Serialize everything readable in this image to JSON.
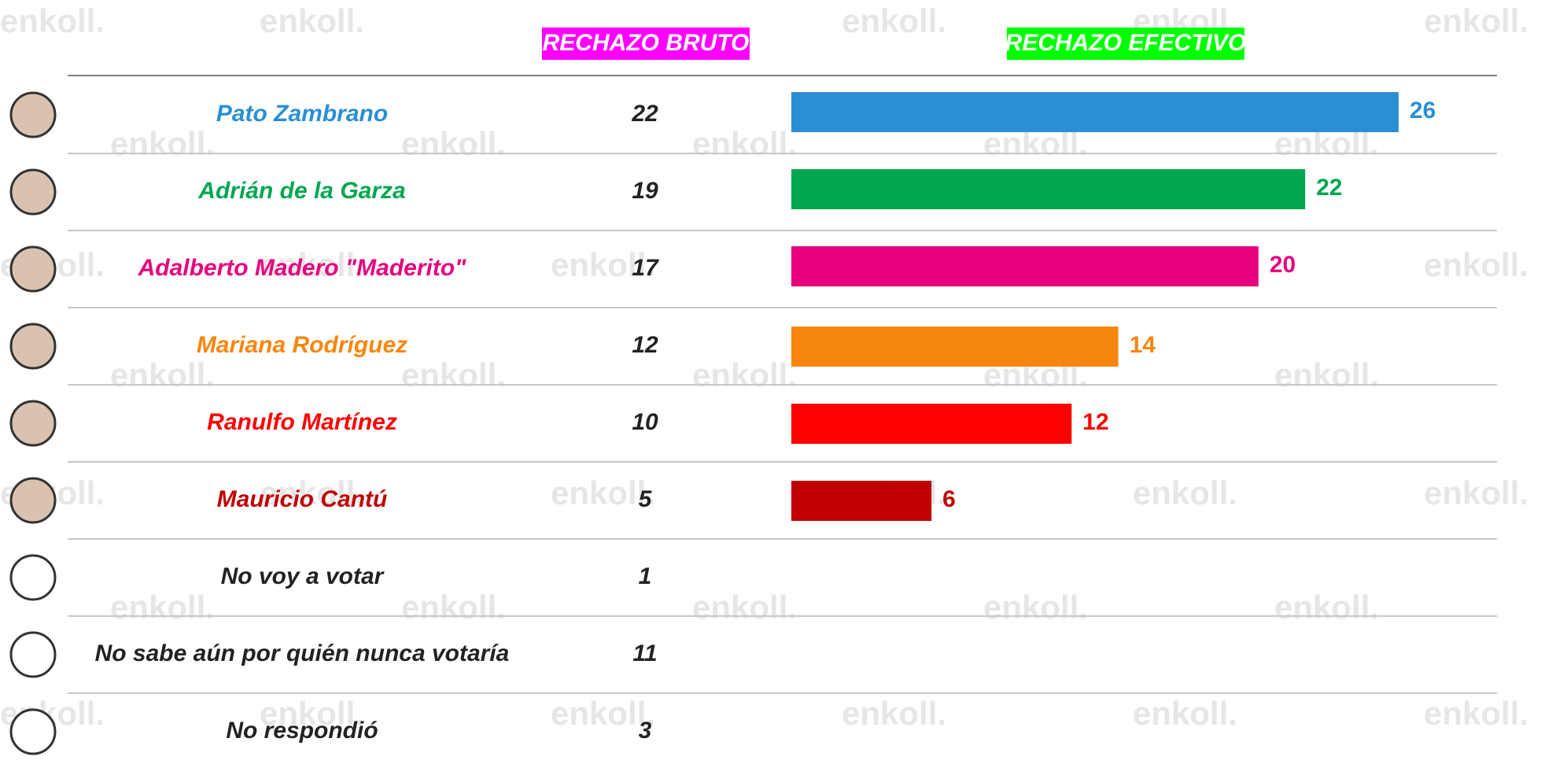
{
  "chart_data": {
    "type": "bar",
    "orientation": "horizontal",
    "watermark": "enkoll.",
    "categories": [
      "Pato Zambrano",
      "Adrián de la Garza",
      "Adalberto Madero \"Maderito\"",
      "Mariana Rodríguez",
      "Ranulfo Martínez",
      "Mauricio Cantú",
      "No voy a votar",
      "No sabe aún por quién nunca votaría",
      "No respondió"
    ],
    "category_colors": [
      "#2a8fd4",
      "#00a650",
      "#e6007e",
      "#f7860f",
      "#ff0000",
      "#c00000",
      "#222222",
      "#222222",
      "#222222"
    ],
    "table": {
      "header": "RECHAZO BRUTO",
      "header_color": "#ff00ff",
      "values": [
        22,
        19,
        17,
        12,
        10,
        5,
        1,
        11,
        3
      ]
    },
    "series": [
      {
        "name": "RECHAZO EFECTIVO",
        "header_color": "#00ff00",
        "values": [
          26,
          22,
          20,
          14,
          12,
          6,
          null,
          null,
          null
        ]
      }
    ],
    "xlim": [
      0,
      26
    ]
  }
}
